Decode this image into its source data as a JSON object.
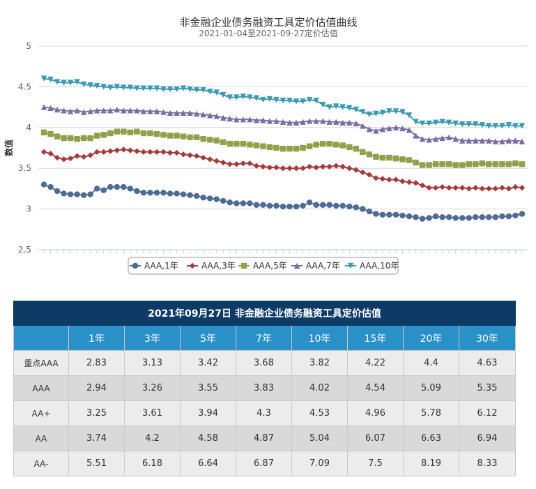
{
  "chart_data": {
    "type": "line",
    "title": "非金融企业债务融资工具定价估值曲线",
    "subtitle": "2021-01-04至2021-09-27定价估值",
    "ylabel": "数值",
    "ylim": [
      2.5,
      5
    ],
    "yticks": [
      "2.5",
      "3",
      "3.5",
      "4",
      "4.5",
      "5"
    ],
    "legend_position": "bottom",
    "series": [
      {
        "name": "AAA,1年",
        "color": "#4e6b96",
        "marker": "circle",
        "values": [
          3.3,
          3.27,
          3.22,
          3.19,
          3.18,
          3.18,
          3.17,
          3.18,
          3.25,
          3.23,
          3.27,
          3.27,
          3.27,
          3.25,
          3.22,
          3.2,
          3.2,
          3.2,
          3.2,
          3.19,
          3.19,
          3.18,
          3.17,
          3.16,
          3.14,
          3.13,
          3.12,
          3.1,
          3.08,
          3.07,
          3.07,
          3.07,
          3.05,
          3.05,
          3.04,
          3.04,
          3.03,
          3.03,
          3.03,
          3.04,
          3.08,
          3.05,
          3.05,
          3.05,
          3.04,
          3.04,
          3.03,
          3.02,
          3.0,
          2.97,
          2.94,
          2.93,
          2.93,
          2.93,
          2.92,
          2.91,
          2.9,
          2.88,
          2.89,
          2.91,
          2.9,
          2.9,
          2.89,
          2.89,
          2.89,
          2.9,
          2.9,
          2.9,
          2.9,
          2.91,
          2.91,
          2.92,
          2.94
        ]
      },
      {
        "name": "AAA,3年",
        "color": "#a33b3b",
        "marker": "diamond",
        "values": [
          3.7,
          3.68,
          3.63,
          3.61,
          3.62,
          3.65,
          3.64,
          3.66,
          3.7,
          3.7,
          3.71,
          3.72,
          3.73,
          3.72,
          3.71,
          3.7,
          3.7,
          3.7,
          3.7,
          3.69,
          3.69,
          3.67,
          3.66,
          3.65,
          3.63,
          3.61,
          3.59,
          3.57,
          3.55,
          3.55,
          3.56,
          3.56,
          3.53,
          3.52,
          3.51,
          3.51,
          3.5,
          3.5,
          3.5,
          3.5,
          3.52,
          3.51,
          3.52,
          3.52,
          3.53,
          3.52,
          3.5,
          3.48,
          3.45,
          3.42,
          3.38,
          3.37,
          3.36,
          3.36,
          3.34,
          3.33,
          3.32,
          3.29,
          3.26,
          3.26,
          3.27,
          3.26,
          3.26,
          3.26,
          3.25,
          3.26,
          3.25,
          3.25,
          3.25,
          3.26,
          3.25,
          3.27,
          3.26
        ]
      },
      {
        "name": "AAA,5年",
        "color": "#8fa24b",
        "marker": "square",
        "values": [
          3.94,
          3.92,
          3.89,
          3.87,
          3.87,
          3.86,
          3.87,
          3.87,
          3.9,
          3.91,
          3.93,
          3.95,
          3.95,
          3.94,
          3.95,
          3.93,
          3.93,
          3.92,
          3.91,
          3.9,
          3.9,
          3.89,
          3.88,
          3.88,
          3.86,
          3.85,
          3.84,
          3.82,
          3.8,
          3.8,
          3.8,
          3.79,
          3.78,
          3.77,
          3.76,
          3.75,
          3.74,
          3.74,
          3.74,
          3.75,
          3.77,
          3.79,
          3.8,
          3.8,
          3.79,
          3.78,
          3.76,
          3.74,
          3.7,
          3.67,
          3.64,
          3.63,
          3.63,
          3.62,
          3.61,
          3.6,
          3.57,
          3.54,
          3.54,
          3.55,
          3.55,
          3.55,
          3.54,
          3.54,
          3.55,
          3.55,
          3.56,
          3.55,
          3.55,
          3.55,
          3.55,
          3.56,
          3.55
        ]
      },
      {
        "name": "AAA,7年",
        "color": "#7b6da3",
        "marker": "triangle",
        "values": [
          4.25,
          4.24,
          4.22,
          4.21,
          4.2,
          4.21,
          4.19,
          4.2,
          4.21,
          4.21,
          4.21,
          4.22,
          4.21,
          4.21,
          4.21,
          4.2,
          4.2,
          4.2,
          4.19,
          4.18,
          4.18,
          4.18,
          4.18,
          4.17,
          4.16,
          4.15,
          4.14,
          4.12,
          4.11,
          4.1,
          4.1,
          4.1,
          4.09,
          4.09,
          4.08,
          4.08,
          4.07,
          4.06,
          4.06,
          4.07,
          4.08,
          4.08,
          4.08,
          4.07,
          4.07,
          4.06,
          4.06,
          4.05,
          4.02,
          3.98,
          3.96,
          3.98,
          3.99,
          4.0,
          3.99,
          3.97,
          3.9,
          3.86,
          3.85,
          3.86,
          3.87,
          3.88,
          3.86,
          3.84,
          3.84,
          3.84,
          3.84,
          3.84,
          3.83,
          3.83,
          3.84,
          3.84,
          3.83
        ]
      },
      {
        "name": "AAA,10年",
        "color": "#3a9ab0",
        "marker": "triangle-down",
        "values": [
          4.6,
          4.59,
          4.56,
          4.55,
          4.55,
          4.56,
          4.53,
          4.52,
          4.51,
          4.5,
          4.49,
          4.5,
          4.49,
          4.49,
          4.48,
          4.48,
          4.48,
          4.48,
          4.47,
          4.47,
          4.47,
          4.48,
          4.47,
          4.46,
          4.46,
          4.44,
          4.43,
          4.4,
          4.37,
          4.37,
          4.38,
          4.37,
          4.36,
          4.34,
          4.35,
          4.34,
          4.33,
          4.33,
          4.32,
          4.32,
          4.34,
          4.33,
          4.28,
          4.25,
          4.26,
          4.25,
          4.24,
          4.22,
          4.19,
          4.16,
          4.17,
          4.18,
          4.2,
          4.2,
          4.19,
          4.15,
          4.07,
          4.05,
          4.05,
          4.06,
          4.07,
          4.06,
          4.05,
          4.04,
          4.04,
          4.04,
          4.03,
          4.02,
          4.02,
          4.02,
          4.03,
          4.02,
          4.02
        ]
      }
    ]
  },
  "table": {
    "title": "2021年09月27日  非金融企业债务融资工具定价估值",
    "columns": [
      "1年",
      "3年",
      "5年",
      "7年",
      "10年",
      "15年",
      "20年",
      "30年"
    ],
    "rows": [
      {
        "label": "重点AAA",
        "values": [
          "2.83",
          "3.13",
          "3.42",
          "3.68",
          "3.82",
          "4.22",
          "4.4",
          "4.63"
        ]
      },
      {
        "label": "AAA",
        "values": [
          "2.94",
          "3.26",
          "3.55",
          "3.83",
          "4.02",
          "4.54",
          "5.09",
          "5.35"
        ]
      },
      {
        "label": "AA+",
        "values": [
          "3.25",
          "3.61",
          "3.94",
          "4.3",
          "4.53",
          "4.96",
          "5.78",
          "6.12"
        ]
      },
      {
        "label": "AA",
        "values": [
          "3.74",
          "4.2",
          "4.58",
          "4.87",
          "5.04",
          "6.07",
          "6.63",
          "6.94"
        ]
      },
      {
        "label": "AA-",
        "values": [
          "5.51",
          "6.18",
          "6.64",
          "6.87",
          "7.09",
          "7.5",
          "8.19",
          "8.33"
        ]
      }
    ]
  }
}
